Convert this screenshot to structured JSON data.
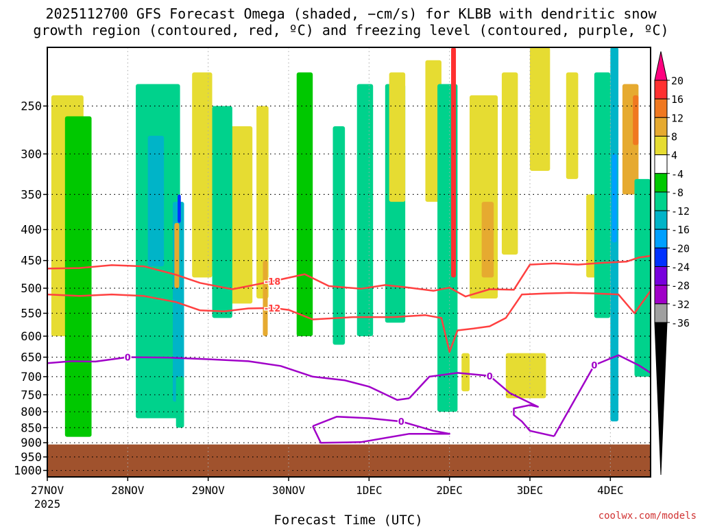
{
  "title_line1": "2025112700 GFS Forecast Omega (shaded, −cm/s) for KLBB with dendritic snow",
  "title_line2": "growth region (contoured, red, ºC) and freezing level (contoured, purple, ºC)",
  "credit": "coolwx.com/models",
  "chart_data": {
    "type": "heatmap",
    "title": "2025112700 GFS Forecast Omega (shaded, −cm/s) for KLBB with dendritic snow growth region (contoured, red, ºC) and freezing level (contoured, purple, ºC)",
    "xlabel": "Forecast Time (UTC)",
    "ylabel": "",
    "x_ticks": [
      "27NOV",
      "28NOV",
      "29NOV",
      "30NOV",
      "1DEC",
      "2DEC",
      "3DEC",
      "4DEC"
    ],
    "x_tick_sub": "2025",
    "x_range_days": [
      0,
      7.5
    ],
    "y_ticks": [
      250,
      300,
      350,
      400,
      450,
      500,
      550,
      600,
      650,
      700,
      750,
      800,
      850,
      900,
      950,
      1000
    ],
    "y_range_hpa": [
      200,
      1025
    ],
    "y_scale": "log-pressure",
    "ground_level_hpa": 906,
    "ground_color": "#a0522d",
    "colorbar": {
      "labels": [
        "20",
        "16",
        "12",
        "8",
        "4",
        "-4",
        "-8",
        "-12",
        "-16",
        "-20",
        "-24",
        "-28",
        "-32",
        "-36"
      ],
      "colors": [
        "#ff007f",
        "#ff3030",
        "#f07820",
        "#e6aa30",
        "#e6dc32",
        "#ffffff",
        "#00c800",
        "#00d28c",
        "#00b4c8",
        "#00a0ff",
        "#0032ff",
        "#7800dc",
        "#a000c8",
        "#a0a0a0",
        "#000000"
      ],
      "extend": "both"
    },
    "dgz_contours": [
      {
        "label": "-18",
        "color": "#ff4040",
        "points": [
          [
            0,
            464
          ],
          [
            0.4,
            463
          ],
          [
            0.8,
            458
          ],
          [
            1.2,
            460
          ],
          [
            1.6,
            475
          ],
          [
            1.9,
            490
          ],
          [
            2.3,
            502
          ],
          [
            2.8,
            487
          ],
          [
            3.2,
            474
          ],
          [
            3.5,
            496
          ],
          [
            3.9,
            501
          ],
          [
            4.2,
            494
          ],
          [
            4.5,
            499
          ],
          [
            4.8,
            505
          ],
          [
            5.0,
            499
          ],
          [
            5.2,
            516
          ],
          [
            5.5,
            502
          ],
          [
            5.8,
            503
          ],
          [
            6.0,
            457
          ],
          [
            6.3,
            455
          ],
          [
            6.6,
            457
          ],
          [
            6.9,
            454
          ],
          [
            7.2,
            452
          ],
          [
            7.35,
            445
          ],
          [
            7.5,
            442
          ]
        ]
      },
      {
        "label": "-12",
        "color": "#ff4040",
        "points": [
          [
            0,
            512
          ],
          [
            0.4,
            515
          ],
          [
            0.8,
            512
          ],
          [
            1.2,
            515
          ],
          [
            1.6,
            527
          ],
          [
            1.9,
            544
          ],
          [
            2.2,
            546
          ],
          [
            2.5,
            540
          ],
          [
            2.8,
            539
          ],
          [
            3.0,
            543
          ],
          [
            3.3,
            563
          ],
          [
            3.8,
            558
          ],
          [
            4.3,
            558
          ],
          [
            4.7,
            554
          ],
          [
            4.9,
            560
          ],
          [
            5.0,
            637
          ],
          [
            5.1,
            587
          ],
          [
            5.3,
            583
          ],
          [
            5.5,
            578
          ],
          [
            5.7,
            560
          ],
          [
            5.9,
            512
          ],
          [
            6.2,
            510
          ],
          [
            6.5,
            509
          ],
          [
            6.8,
            510
          ],
          [
            7.1,
            512
          ],
          [
            7.3,
            550
          ],
          [
            7.5,
            505
          ]
        ]
      }
    ],
    "freezing_level_contours": [
      {
        "label": "0",
        "color": "#a000c8",
        "points": [
          [
            0,
            665
          ],
          [
            0.3,
            660
          ],
          [
            0.6,
            661
          ],
          [
            1.0,
            650
          ],
          [
            1.5,
            651
          ],
          [
            2.0,
            655
          ],
          [
            2.5,
            660
          ],
          [
            2.9,
            672
          ],
          [
            3.3,
            700
          ],
          [
            3.7,
            710
          ],
          [
            4.0,
            727
          ],
          [
            4.35,
            765
          ],
          [
            4.5,
            760
          ]
        ]
      },
      {
        "label": "0",
        "color": "#a000c8",
        "points": [
          [
            4.5,
            760
          ],
          [
            4.75,
            700
          ],
          [
            5.1,
            690
          ],
          [
            5.5,
            698
          ],
          [
            5.75,
            745
          ],
          [
            6.1,
            785
          ],
          [
            6.0,
            780
          ],
          [
            5.8,
            790
          ],
          [
            5.8,
            810
          ],
          [
            5.9,
            830
          ],
          [
            6.0,
            860
          ],
          [
            6.3,
            878
          ]
        ]
      },
      {
        "label": "0",
        "color": "#a000c8",
        "points": [
          [
            6.3,
            878
          ],
          [
            6.8,
            670
          ],
          [
            7.1,
            645
          ],
          [
            7.35,
            670
          ],
          [
            7.5,
            690
          ]
        ]
      },
      {
        "label": "0",
        "color": "#a000c8",
        "points": [
          [
            3.3,
            845
          ],
          [
            3.6,
            815
          ],
          [
            4.0,
            820
          ],
          [
            4.4,
            830
          ],
          [
            4.8,
            860
          ],
          [
            5.0,
            870
          ],
          [
            4.5,
            870
          ],
          [
            3.9,
            898
          ],
          [
            3.4,
            900
          ],
          [
            3.3,
            845
          ]
        ]
      }
    ],
    "omega_regions": [
      {
        "x": [
          0.05,
          0.45
        ],
        "p": [
          240,
          600
        ],
        "value": 4
      },
      {
        "x": [
          0.22,
          0.55
        ],
        "p": [
          260,
          880
        ],
        "value": -6
      },
      {
        "x": [
          1.1,
          1.65
        ],
        "p": [
          230,
          820
        ],
        "value": -8
      },
      {
        "x": [
          1.25,
          1.45
        ],
        "p": [
          280,
          460
        ],
        "value": -12
      },
      {
        "x": [
          1.56,
          1.7
        ],
        "p": [
          360,
          770
        ],
        "value": -14
      },
      {
        "x": [
          1.58,
          1.64
        ],
        "p": [
          390,
          500
        ],
        "value": 10
      },
      {
        "x": [
          1.6,
          1.7
        ],
        "p": [
          700,
          850
        ],
        "value": -10
      },
      {
        "x": [
          1.62,
          1.66
        ],
        "p": [
          350,
          390
        ],
        "value": -22
      },
      {
        "x": [
          1.8,
          2.05
        ],
        "p": [
          220,
          480
        ],
        "value": 4
      },
      {
        "x": [
          2.2,
          2.55
        ],
        "p": [
          270,
          530
        ],
        "value": 4
      },
      {
        "x": [
          2.05,
          2.3
        ],
        "p": [
          250,
          560
        ],
        "value": -8
      },
      {
        "x": [
          2.6,
          2.75
        ],
        "p": [
          250,
          520
        ],
        "value": 6
      },
      {
        "x": [
          2.68,
          2.74
        ],
        "p": [
          450,
          600
        ],
        "value": 10
      },
      {
        "x": [
          3.1,
          3.3
        ],
        "p": [
          220,
          600
        ],
        "value": -6
      },
      {
        "x": [
          3.55,
          3.7
        ],
        "p": [
          270,
          620
        ],
        "value": -10
      },
      {
        "x": [
          3.85,
          4.05
        ],
        "p": [
          230,
          600
        ],
        "value": -8
      },
      {
        "x": [
          4.2,
          4.45
        ],
        "p": [
          230,
          570
        ],
        "value": -8
      },
      {
        "x": [
          4.25,
          4.45
        ],
        "p": [
          220,
          360
        ],
        "value": 4
      },
      {
        "x": [
          4.7,
          4.9
        ],
        "p": [
          210,
          360
        ],
        "value": 4
      },
      {
        "x": [
          4.85,
          5.1
        ],
        "p": [
          230,
          800
        ],
        "value": -10
      },
      {
        "x": [
          5.02,
          5.08
        ],
        "p": [
          200,
          480
        ],
        "value": 18
      },
      {
        "x": [
          5.25,
          5.6
        ],
        "p": [
          240,
          520
        ],
        "value": 6
      },
      {
        "x": [
          5.4,
          5.55
        ],
        "p": [
          360,
          480
        ],
        "value": 10
      },
      {
        "x": [
          5.65,
          5.85
        ],
        "p": [
          220,
          440
        ],
        "value": 4
      },
      {
        "x": [
          6.0,
          6.25
        ],
        "p": [
          200,
          320
        ],
        "value": 4
      },
      {
        "x": [
          6.45,
          6.6
        ],
        "p": [
          220,
          330
        ],
        "value": 6
      },
      {
        "x": [
          6.7,
          6.9
        ],
        "p": [
          350,
          480
        ],
        "value": 6
      },
      {
        "x": [
          6.8,
          7.0
        ],
        "p": [
          220,
          560
        ],
        "value": -8
      },
      {
        "x": [
          7.0,
          7.1
        ],
        "p": [
          200,
          830
        ],
        "value": -12
      },
      {
        "x": [
          7.02,
          7.08
        ],
        "p": [
          300,
          420
        ],
        "value": -16
      },
      {
        "x": [
          7.15,
          7.35
        ],
        "p": [
          230,
          350
        ],
        "value": 8
      },
      {
        "x": [
          7.28,
          7.35
        ],
        "p": [
          240,
          290
        ],
        "value": 12
      },
      {
        "x": [
          7.3,
          7.5
        ],
        "p": [
          330,
          700
        ],
        "value": -8
      },
      {
        "x": [
          5.7,
          6.2
        ],
        "p": [
          640,
          760
        ],
        "value": 4
      },
      {
        "x": [
          5.15,
          5.25
        ],
        "p": [
          640,
          740
        ],
        "value": 4
      }
    ]
  }
}
